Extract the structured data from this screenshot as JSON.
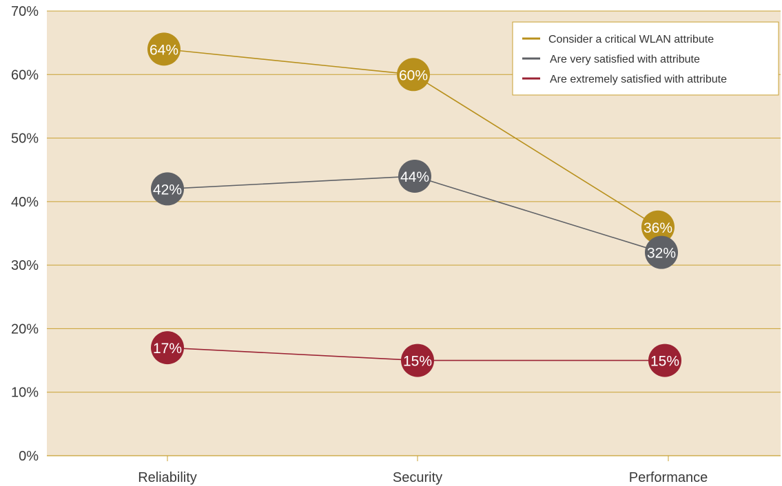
{
  "chart_data": {
    "type": "line",
    "title": "",
    "xlabel": "",
    "ylabel": "",
    "categories": [
      "Reliability",
      "Security",
      "Performance"
    ],
    "y_ticks": [
      "0%",
      "10%",
      "20%",
      "30%",
      "40%",
      "50%",
      "60%",
      "70%"
    ],
    "ylim": [
      0,
      70
    ],
    "grid": true,
    "legend_position": "top-right",
    "series": [
      {
        "name": "Consider a critical WLAN attribute",
        "values": [
          64,
          60,
          36
        ],
        "labels": [
          "64%",
          "60%",
          "36%"
        ],
        "color": "#b8901c"
      },
      {
        "name": "Are very satisfied with attribute",
        "values": [
          42,
          44,
          32
        ],
        "labels": [
          "42%",
          "44%",
          "32%"
        ],
        "color": "#5f6166"
      },
      {
        "name": "Are extremely satisfied with attribute",
        "values": [
          17,
          15,
          15
        ],
        "labels": [
          "17%",
          "15%",
          "15%"
        ],
        "color": "#9b2233"
      }
    ],
    "colors": {
      "plot_background": "#f1e4cf",
      "gridline": "#c8a030"
    }
  }
}
